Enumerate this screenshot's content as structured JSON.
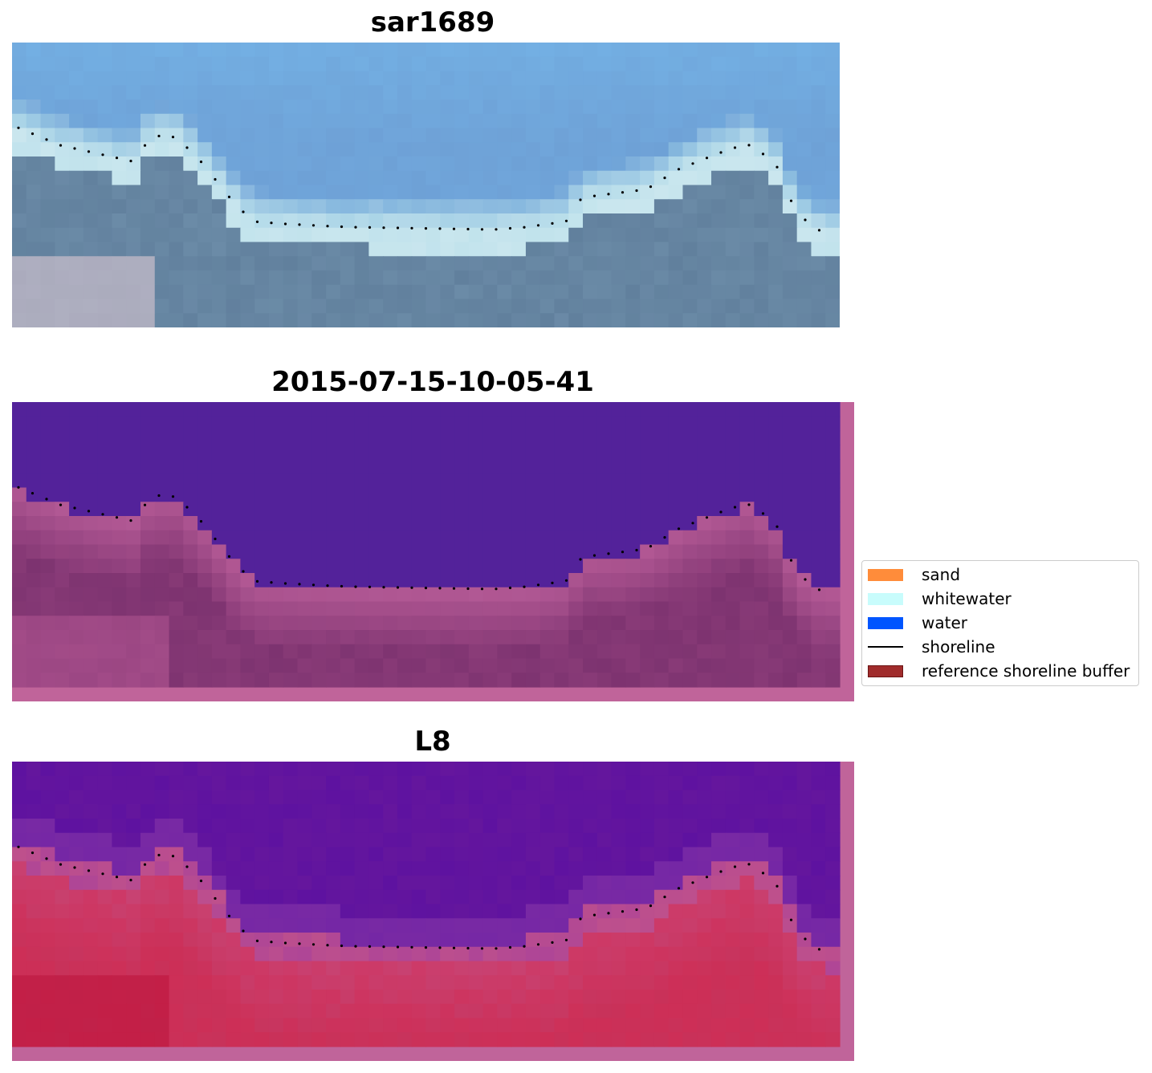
{
  "titles": {
    "panel1": "sar1689",
    "panel2": "2015-07-15-10-05-41",
    "panel3": "L8"
  },
  "legend": {
    "items": [
      {
        "label": "sand",
        "color": "#ff8c3a",
        "kind": "patch"
      },
      {
        "label": "whitewater",
        "color": "#c8fcfc",
        "kind": "patch"
      },
      {
        "label": "water",
        "color": "#0055ff",
        "kind": "patch"
      },
      {
        "label": "shoreline",
        "color": "#000000",
        "kind": "line"
      },
      {
        "label": "reference shoreline buffer",
        "color": "#a02c2c",
        "kind": "patch"
      }
    ]
  },
  "colors": {
    "rgb_sky": "#6fa3d8",
    "rgb_foam": "#cfe8ef",
    "rgb_land": "#6a8aa6",
    "class_water": "#53229a",
    "class_land": "#7d3370",
    "class_frame": "#c0649a",
    "ndwi_water": "#5e12a0",
    "ndwi_land": "#c8325a"
  }
}
